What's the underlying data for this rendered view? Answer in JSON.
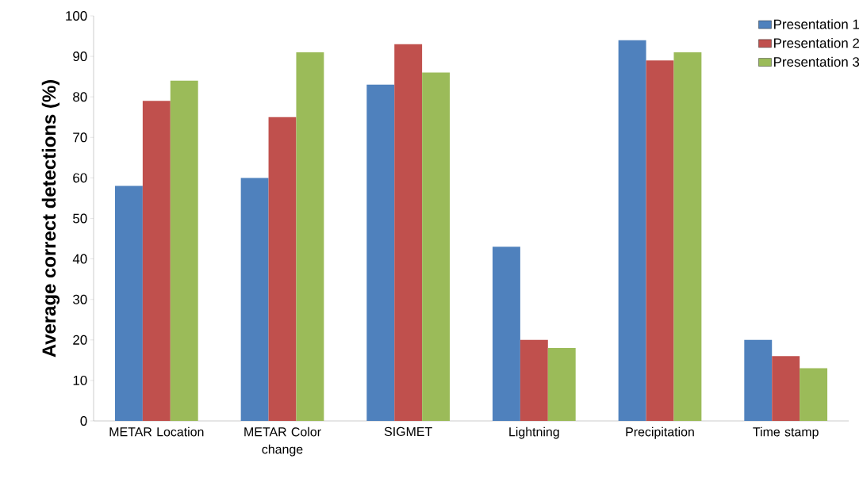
{
  "chart_data": {
    "type": "bar",
    "ylabel": "Average correct detections (%)",
    "categories": [
      "METAR Location",
      "METAR Color change",
      "SIGMET",
      "Lightning",
      "Precipitation",
      "Time stamp"
    ],
    "series": [
      {
        "name": "Presentation 1",
        "color": "#4f81bd",
        "values": [
          58,
          60,
          83,
          43,
          94,
          20
        ]
      },
      {
        "name": "Presentation 2",
        "color": "#c0504d",
        "values": [
          79,
          75,
          93,
          20,
          89,
          16
        ]
      },
      {
        "name": "Presentation 3",
        "color": "#9bbb59",
        "values": [
          84,
          91,
          86,
          18,
          91,
          13
        ]
      }
    ],
    "ylim": [
      0,
      100
    ],
    "yticks": [
      0,
      10,
      20,
      30,
      40,
      50,
      60,
      70,
      80,
      90,
      100
    ],
    "grid": false,
    "legend": "top right"
  }
}
